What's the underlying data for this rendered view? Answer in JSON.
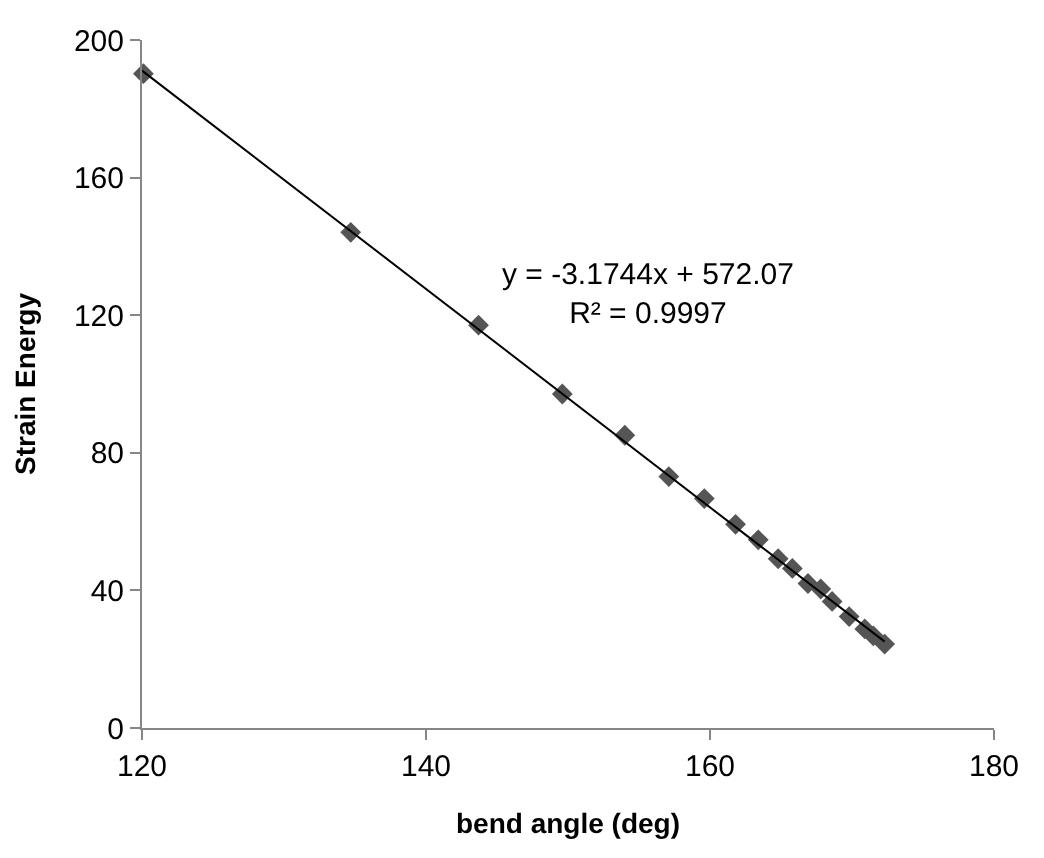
{
  "chart_data": {
    "type": "scatter",
    "xlabel": "bend angle (deg)",
    "ylabel": "Strain Energy",
    "xlim": [
      120,
      180
    ],
    "xticks": [
      120,
      140,
      160,
      180
    ],
    "ylim": [
      0,
      200
    ],
    "yticks": [
      0,
      40,
      80,
      120,
      160,
      200
    ],
    "grid": false,
    "series": [
      {
        "marker": "diamond",
        "color": "#555555",
        "x": [
          120.1,
          134.7,
          143.7,
          149.6,
          154.0,
          157.1,
          159.6,
          161.8,
          163.4,
          164.8,
          165.8,
          166.9,
          167.8,
          168.6,
          169.8,
          170.9,
          171.5,
          172.3
        ],
        "values": [
          190.2,
          144.1,
          117.1,
          97.1,
          85.1,
          73.1,
          66.7,
          59.2,
          54.7,
          49.2,
          46.4,
          42.0,
          40.4,
          36.8,
          32.4,
          28.8,
          26.8,
          24.4
        ]
      },
      {
        "type": "line",
        "color": "#000000",
        "line_style": "solid",
        "x": [
          120,
          172.3
        ],
        "values": [
          191.1,
          25.1
        ]
      }
    ],
    "annotations": [
      "y = -3.1744x + 572.07\nR² = 0.9997"
    ]
  }
}
